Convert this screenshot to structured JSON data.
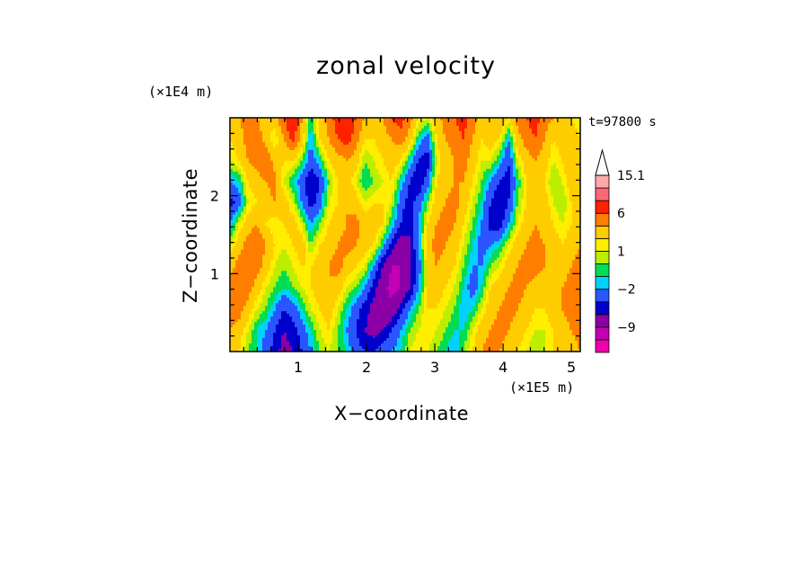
{
  "chart_data": {
    "type": "heatmap",
    "title": "zonal velocity",
    "xlabel": "X−coordinate",
    "ylabel": "Z−coordinate",
    "x_scale_label": "(×1E5 m)",
    "z_scale_label": "(×1E4 m)",
    "time_label": "t=97800 s",
    "x_ticks": [
      "1",
      "2",
      "3",
      "4",
      "5"
    ],
    "z_ticks": [
      "1",
      "2"
    ],
    "xlim": [
      0,
      5.13
    ],
    "zlim": [
      0,
      3.0
    ],
    "colorbar": {
      "labels": [
        "15.1",
        "6",
        "1",
        "−2",
        "−9"
      ],
      "label_values": [
        15.1,
        6,
        1,
        -2,
        -9
      ],
      "levels": [
        -15,
        -12,
        -9,
        -6,
        -4,
        -2,
        -1,
        0,
        1,
        2,
        4,
        6,
        9,
        12,
        15.1
      ],
      "colors": [
        "#ee00aa",
        "#c400b4",
        "#8a00a6",
        "#0000cc",
        "#2a55ff",
        "#00d2ff",
        "#00dd55",
        "#bbee00",
        "#ffee00",
        "#ffcc00",
        "#ff7e00",
        "#ff2200",
        "#ff6677",
        "#ffaaaa"
      ],
      "extend": "max-arrow"
    },
    "values": [
      [
        3,
        4,
        5,
        4,
        2,
        3,
        6,
        8,
        4,
        -1,
        3,
        5,
        7,
        8,
        6,
        4,
        3,
        4,
        6,
        7,
        5,
        2,
        1,
        3,
        5,
        6,
        7,
        5,
        3,
        4,
        4,
        2,
        5,
        6,
        7,
        5,
        4,
        3,
        2,
        1
      ],
      [
        2,
        3,
        5,
        6,
        3,
        1,
        4,
        7,
        3,
        -2,
        2,
        4,
        6,
        7,
        5,
        2,
        2,
        3,
        4,
        5,
        3,
        -1,
        -3,
        2,
        4,
        5,
        6,
        4,
        2,
        3,
        2,
        -2,
        3,
        5,
        6,
        4,
        2,
        3,
        3,
        2
      ],
      [
        1,
        2,
        4,
        5,
        6,
        3,
        2,
        2,
        0,
        -3,
        -1,
        2,
        3,
        4,
        3,
        0,
        1,
        2,
        3,
        2,
        -1,
        -4,
        -5,
        1,
        3,
        4,
        5,
        3,
        1,
        1,
        -1,
        -4,
        1,
        3,
        4,
        3,
        1,
        2,
        4,
        3
      ],
      [
        -2,
        -1,
        2,
        3,
        4,
        5,
        1,
        -1,
        -3,
        -6,
        -4,
        0,
        2,
        3,
        1,
        -1,
        0,
        1,
        2,
        -1,
        -4,
        -6,
        -3,
        2,
        3,
        4,
        4,
        2,
        0,
        -2,
        -4,
        -5,
        -1,
        2,
        3,
        2,
        0,
        1,
        3,
        4
      ],
      [
        -5,
        -3,
        1,
        2,
        3,
        4,
        3,
        1,
        -2,
        -5,
        -3,
        1,
        2,
        4,
        3,
        1,
        2,
        2,
        1,
        -3,
        -5,
        -3,
        0,
        3,
        4,
        5,
        3,
        1,
        -1,
        -4,
        -6,
        -4,
        0,
        2,
        3,
        3,
        1,
        0,
        2,
        3
      ],
      [
        -2,
        1,
        3,
        4,
        2,
        1,
        2,
        3,
        1,
        -2,
        0,
        2,
        3,
        4,
        5,
        3,
        3,
        2,
        -1,
        -4,
        -6,
        -2,
        2,
        4,
        5,
        4,
        2,
        0,
        -2,
        -5,
        -5,
        -2,
        1,
        3,
        4,
        3,
        2,
        1,
        2,
        3
      ],
      [
        1,
        3,
        5,
        6,
        4,
        2,
        1,
        2,
        3,
        0,
        2,
        3,
        4,
        5,
        4,
        3,
        2,
        -1,
        -5,
        -8,
        -6,
        -2,
        3,
        5,
        4,
        3,
        1,
        -1,
        -3,
        -2,
        -1,
        1,
        3,
        4,
        5,
        4,
        3,
        2,
        3,
        4
      ],
      [
        3,
        5,
        6,
        5,
        3,
        1,
        0,
        1,
        2,
        2,
        3,
        4,
        5,
        3,
        2,
        1,
        -2,
        -6,
        -9,
        -9,
        -7,
        -3,
        2,
        4,
        3,
        2,
        0,
        -2,
        -2,
        0,
        1,
        3,
        4,
        5,
        5,
        4,
        3,
        3,
        4,
        5
      ],
      [
        5,
        6,
        5,
        3,
        1,
        0,
        -1,
        0,
        1,
        2,
        3,
        4,
        3,
        1,
        0,
        -2,
        -5,
        -8,
        -10,
        -9,
        -6,
        -2,
        2,
        3,
        2,
        1,
        -1,
        -3,
        -1,
        2,
        3,
        4,
        5,
        4,
        3,
        3,
        3,
        4,
        5,
        6
      ],
      [
        6,
        5,
        3,
        1,
        0,
        -2,
        -4,
        -3,
        -1,
        1,
        2,
        3,
        1,
        -1,
        -3,
        -5,
        -7,
        -9,
        -8,
        -5,
        -2,
        0,
        2,
        2,
        1,
        0,
        -2,
        -1,
        1,
        3,
        4,
        5,
        4,
        3,
        2,
        2,
        3,
        4,
        5,
        6
      ],
      [
        4,
        3,
        1,
        -1,
        -2,
        -4,
        -6,
        -5,
        -3,
        -1,
        1,
        2,
        0,
        -2,
        -4,
        -6,
        -7,
        -6,
        -4,
        -2,
        0,
        1,
        2,
        1,
        0,
        -1,
        -1,
        1,
        3,
        4,
        5,
        4,
        3,
        2,
        1,
        1,
        2,
        3,
        4,
        5
      ],
      [
        3,
        2,
        0,
        -1,
        -3,
        -5,
        -7,
        -6,
        -4,
        -2,
        0,
        1,
        0,
        -1,
        -3,
        -4,
        -4,
        -3,
        -2,
        -1,
        1,
        2,
        1,
        0,
        -1,
        -2,
        0,
        2,
        4,
        5,
        4,
        3,
        2,
        1,
        0,
        1,
        2,
        3,
        3,
        4
      ]
    ]
  }
}
